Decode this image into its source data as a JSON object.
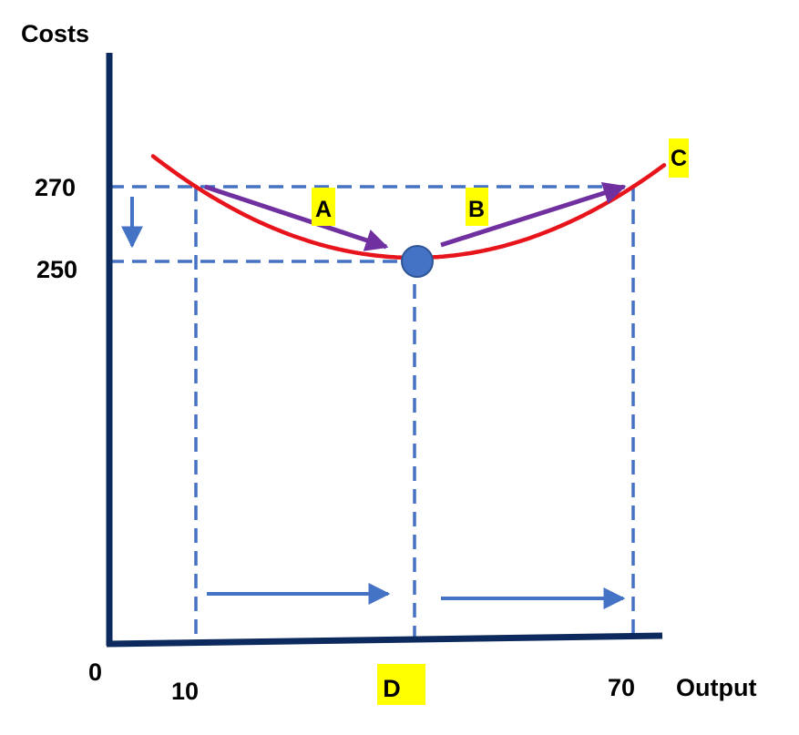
{
  "chart_data": {
    "type": "line",
    "ylabel": "Costs",
    "xlabel": "Output",
    "origin_label": "0",
    "x_ticks": [
      {
        "value": 10,
        "label": "10"
      },
      {
        "value": 70,
        "label": "70"
      }
    ],
    "y_ticks": [
      {
        "value": 270,
        "label": "270"
      },
      {
        "value": 250,
        "label": "250"
      }
    ],
    "series": [
      {
        "curve": "U-shaped cost curve",
        "points": [
          {
            "x": 10,
            "y": 270
          },
          {
            "x": 40,
            "y": 250
          },
          {
            "x": 70,
            "y": 270
          }
        ]
      }
    ],
    "minimum_point": {
      "x": 40,
      "y": 250
    },
    "annotations": {
      "arrow_a": "A",
      "arrow_b": "B",
      "curve_label": "C",
      "minimum_output_label": "D"
    },
    "colors": {
      "axis": "#0d2a5e",
      "curve": "#e8141c",
      "guide": "#4472c4",
      "movement_arrow": "#7030a0",
      "highlight": "#ffff00",
      "minimum_marker": "#4472c4"
    }
  }
}
